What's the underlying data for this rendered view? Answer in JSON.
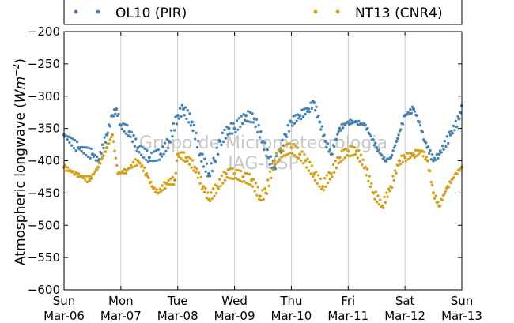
{
  "chart_data": {
    "type": "scatter",
    "ylabel_text": "Atmospheric longwave (",
    "ylabel_unit": "Wm",
    "ylabel_exp": "−2",
    "ylabel_close": ")",
    "ylim": [
      -600,
      -200
    ],
    "yticks": [
      -200,
      -250,
      -300,
      -350,
      -400,
      -450,
      -500,
      -550,
      -600
    ],
    "ytick_labels": [
      "−200",
      "−250",
      "−300",
      "−350",
      "−400",
      "−450",
      "−500",
      "−550",
      "−600"
    ],
    "xlim": [
      "2016-03-06",
      "2016-03-13"
    ],
    "x_unit": "day",
    "xticks": [
      {
        "day": "Sun",
        "date": "Mar-06"
      },
      {
        "day": "Mon",
        "date": "Mar-07"
      },
      {
        "day": "Tue",
        "date": "Mar-08"
      },
      {
        "day": "Wed",
        "date": "Mar-09"
      },
      {
        "day": "Thu",
        "date": "Mar-10"
      },
      {
        "day": "Fri",
        "date": "Mar-11"
      },
      {
        "day": "Sat",
        "date": "Mar-12"
      },
      {
        "day": "Sun",
        "date": "Mar-13"
      }
    ],
    "grid": "vertical",
    "legend_position": "top (outside)",
    "watermark_lines": [
      "Grupo de Micrometeorologia",
      "IAG-USP"
    ],
    "series": [
      {
        "name": "OL10 (PIR)",
        "color": "#4682b4",
        "values": [
          [
            0.0,
            -360
          ],
          [
            0.25,
            -380
          ],
          [
            0.5,
            -390
          ],
          [
            0.6,
            -400
          ],
          [
            0.75,
            -360
          ],
          [
            0.85,
            -330
          ],
          [
            0.92,
            -320
          ],
          [
            1.0,
            -345
          ],
          [
            1.15,
            -355
          ],
          [
            1.3,
            -380
          ],
          [
            1.5,
            -395
          ],
          [
            1.7,
            -390
          ],
          [
            1.85,
            -370
          ],
          [
            2.0,
            -330
          ],
          [
            2.1,
            -320
          ],
          [
            2.25,
            -340
          ],
          [
            2.4,
            -390
          ],
          [
            2.55,
            -420
          ],
          [
            2.65,
            -400
          ],
          [
            2.75,
            -370
          ],
          [
            2.9,
            -350
          ],
          [
            3.0,
            -350
          ],
          [
            3.2,
            -330
          ],
          [
            3.35,
            -335
          ],
          [
            3.5,
            -370
          ],
          [
            3.6,
            -395
          ],
          [
            3.7,
            -410
          ],
          [
            3.8,
            -385
          ],
          [
            3.9,
            -360
          ],
          [
            4.0,
            -340
          ],
          [
            4.15,
            -330
          ],
          [
            4.3,
            -320
          ],
          [
            4.4,
            -310
          ],
          [
            4.5,
            -340
          ],
          [
            4.6,
            -370
          ],
          [
            4.7,
            -390
          ],
          [
            4.85,
            -350
          ],
          [
            5.0,
            -340
          ],
          [
            5.15,
            -340
          ],
          [
            5.3,
            -345
          ],
          [
            5.5,
            -380
          ],
          [
            5.65,
            -400
          ],
          [
            5.75,
            -395
          ],
          [
            5.85,
            -370
          ],
          [
            6.0,
            -330
          ],
          [
            6.15,
            -320
          ],
          [
            6.25,
            -340
          ],
          [
            6.35,
            -370
          ],
          [
            6.5,
            -400
          ],
          [
            6.6,
            -390
          ],
          [
            6.8,
            -360
          ],
          [
            6.95,
            -335
          ],
          [
            7.0,
            -315
          ]
        ]
      },
      {
        "name": "NT13 (CNR4)",
        "color": "#d4a017",
        "values": [
          [
            0.0,
            -410
          ],
          [
            0.2,
            -420
          ],
          [
            0.45,
            -430
          ],
          [
            0.6,
            -410
          ],
          [
            0.75,
            -380
          ],
          [
            0.85,
            -360
          ],
          [
            0.95,
            -420
          ],
          [
            1.1,
            -415
          ],
          [
            1.3,
            -400
          ],
          [
            1.45,
            -420
          ],
          [
            1.55,
            -440
          ],
          [
            1.65,
            -450
          ],
          [
            1.8,
            -435
          ],
          [
            1.95,
            -430
          ],
          [
            2.0,
            -390
          ],
          [
            2.15,
            -395
          ],
          [
            2.3,
            -410
          ],
          [
            2.45,
            -440
          ],
          [
            2.55,
            -460
          ],
          [
            2.7,
            -440
          ],
          [
            2.85,
            -420
          ],
          [
            3.0,
            -420
          ],
          [
            3.15,
            -425
          ],
          [
            3.3,
            -430
          ],
          [
            3.45,
            -455
          ],
          [
            3.55,
            -450
          ],
          [
            3.7,
            -400
          ],
          [
            3.85,
            -385
          ],
          [
            4.0,
            -380
          ],
          [
            4.15,
            -390
          ],
          [
            4.25,
            -400
          ],
          [
            4.4,
            -420
          ],
          [
            4.55,
            -440
          ],
          [
            4.7,
            -420
          ],
          [
            4.85,
            -395
          ],
          [
            5.0,
            -385
          ],
          [
            5.15,
            -385
          ],
          [
            5.3,
            -410
          ],
          [
            5.45,
            -450
          ],
          [
            5.6,
            -470
          ],
          [
            5.75,
            -440
          ],
          [
            5.9,
            -400
          ],
          [
            6.0,
            -395
          ],
          [
            6.15,
            -390
          ],
          [
            6.3,
            -385
          ],
          [
            6.4,
            -400
          ],
          [
            6.5,
            -450
          ],
          [
            6.6,
            -470
          ],
          [
            6.75,
            -440
          ],
          [
            6.9,
            -420
          ],
          [
            7.0,
            -410
          ]
        ]
      }
    ]
  }
}
